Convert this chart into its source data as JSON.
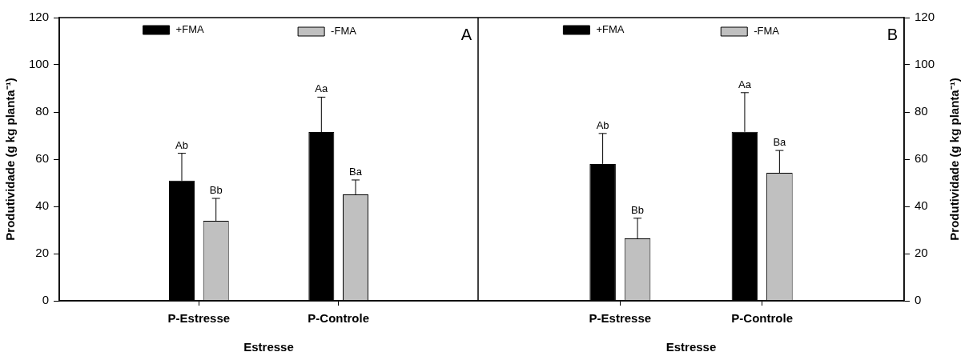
{
  "chart_data": [
    {
      "type": "bar",
      "title": "A",
      "xlabel": "Estresse",
      "ylabel": "Produtividade (g kg planta⁻¹)",
      "categories": [
        "P-Estresse",
        "P-Controle"
      ],
      "series": [
        {
          "name": "+FMA",
          "color": "#000000",
          "values": [
            50.9,
            71.5
          ],
          "errors": [
            [
              50.9,
              62.5
            ],
            [
              71.5,
              86.3
            ]
          ]
        },
        {
          "name": "-FMA",
          "color": "#c0c0c0",
          "values": [
            33.9,
            45.1
          ],
          "errors": [
            [
              33.9,
              43.4
            ],
            [
              45.1,
              51.2
            ]
          ]
        }
      ],
      "ylim": [
        0,
        120
      ],
      "yticks": [
        0,
        20,
        40,
        60,
        80,
        100,
        120
      ],
      "grid": false,
      "legend": "top",
      "annotations": [
        "Ab",
        "Bb",
        "Aa",
        "Ba"
      ]
    },
    {
      "type": "bar",
      "title": "B",
      "xlabel": "Estresse",
      "ylabel": "Produtividade (g kg planta⁻¹)",
      "categories": [
        "P-Estresse",
        "P-Controle"
      ],
      "series": [
        {
          "name": "+FMA",
          "color": "#000000",
          "values": [
            58.0,
            71.6
          ],
          "errors": [
            [
              58.0,
              70.9
            ],
            [
              71.6,
              88.2
            ]
          ]
        },
        {
          "name": "-FMA",
          "color": "#c0c0c0",
          "values": [
            26.4,
            54.2
          ],
          "errors": [
            [
              26.4,
              35.0
            ],
            [
              54.2,
              63.7
            ]
          ]
        }
      ],
      "ylim": [
        0,
        120
      ],
      "yticks": [
        0,
        20,
        40,
        60,
        80,
        100,
        120
      ],
      "grid": false,
      "legend": "top",
      "annotations": [
        "Ab",
        "Bb",
        "Aa",
        "Ba"
      ]
    }
  ]
}
